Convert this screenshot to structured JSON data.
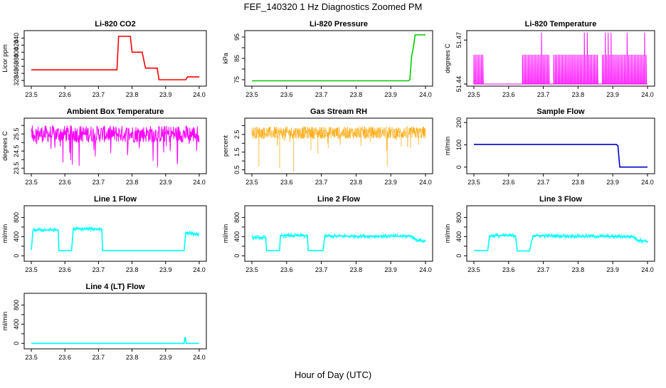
{
  "figure": {
    "title": "FEF_140320  1 Hz Diagnostics Zoomed PM",
    "xlabel": "Hour of Day (UTC)"
  },
  "colors": {
    "red": "#ff0000",
    "green": "#00cc00",
    "magenta": "#ff00ff",
    "orange": "#ffa500",
    "blue": "#0000cc",
    "cyan": "#00ffff"
  },
  "chart_data": [
    {
      "id": "co2",
      "type": "line",
      "title": "Li-820 CO2",
      "ylabel": "Licor ppm",
      "xlim": [
        23.5,
        24.0
      ],
      "ylim": [
        310,
        455
      ],
      "yticks": [
        320,
        340,
        360,
        380,
        400,
        420,
        440
      ],
      "color": "red",
      "series": [
        {
          "x": [
            23.5,
            23.755,
            23.76,
            23.795,
            23.8,
            23.83,
            23.84,
            23.875,
            23.88,
            23.96,
            23.965,
            24.0
          ],
          "values": [
            350,
            350,
            445,
            445,
            400,
            400,
            355,
            355,
            322,
            322,
            330,
            330
          ]
        }
      ]
    },
    {
      "id": "pressure",
      "type": "line",
      "title": "Li-820 Pressure",
      "ylabel": "kPa",
      "xlim": [
        23.5,
        24.0
      ],
      "ylim": [
        73,
        97
      ],
      "yticks": [
        75,
        80,
        85,
        90,
        95
      ],
      "ytick_labels": [
        "75",
        "",
        "85",
        "",
        "95"
      ],
      "color": "green",
      "series": [
        {
          "x": [
            23.5,
            23.95,
            23.955,
            23.96,
            23.965,
            23.97,
            24.0
          ],
          "values": [
            74.5,
            74.5,
            75,
            86,
            90,
            96,
            96
          ]
        }
      ]
    },
    {
      "id": "temp",
      "type": "line",
      "title": "Li-820 Temperature",
      "ylabel": "degrees C",
      "xlim": [
        23.5,
        24.0
      ],
      "ylim": [
        51.44,
        51.475
      ],
      "yticks": [
        51.44,
        51.47
      ],
      "color": "magenta",
      "baseline": 51.44,
      "upper": 51.46,
      "top": 51.475,
      "dense_ranges": [
        [
          23.5,
          23.53
        ],
        [
          23.64,
          23.72
        ],
        [
          23.73,
          23.86
        ],
        [
          23.87,
          24.0
        ]
      ]
    },
    {
      "id": "ambient",
      "type": "line",
      "title": "Ambient Box Temperature",
      "ylabel": "degrees C",
      "xlim": [
        23.5,
        24.0
      ],
      "ylim": [
        23.3,
        26.3
      ],
      "yticks": [
        23.5,
        24.0,
        24.5,
        25.0,
        25.5,
        26.0
      ],
      "ytick_labels": [
        "23.5",
        "",
        "24.5",
        "",
        "25.5",
        ""
      ],
      "color": "magenta",
      "mean": 25.5,
      "noise": 0.5
    },
    {
      "id": "rh",
      "type": "scatter",
      "title": "Gas Stream RH",
      "ylabel": "percent",
      "xlim": [
        23.5,
        24.0
      ],
      "ylim": [
        0.4,
        3.3
      ],
      "yticks": [
        0.5,
        1.0,
        1.5,
        2.0,
        2.5,
        3.0
      ],
      "ytick_labels": [
        "0.5",
        "",
        "1.5",
        "",
        "2.5",
        ""
      ],
      "color": "orange",
      "mean": 2.6,
      "noise": 0.35,
      "dips": [
        [
          23.52,
          0.7
        ],
        [
          23.58,
          0.6
        ],
        [
          23.62,
          0.4
        ],
        [
          23.67,
          1.6
        ],
        [
          23.69,
          1.4
        ],
        [
          23.72,
          1.7
        ],
        [
          23.89,
          0.7
        ],
        [
          23.93,
          1.8
        ],
        [
          23.98,
          1.9
        ]
      ]
    },
    {
      "id": "sample",
      "type": "line",
      "title": "Sample Flow",
      "ylabel": "ml/min",
      "xlim": [
        23.5,
        24.0
      ],
      "ylim": [
        -20,
        210
      ],
      "yticks": [
        0,
        100,
        200
      ],
      "color": "blue",
      "series": [
        {
          "x": [
            23.5,
            23.91,
            23.915,
            23.92,
            24.0
          ],
          "values": [
            102,
            102,
            95,
            0,
            0
          ]
        }
      ]
    },
    {
      "id": "line1",
      "type": "line",
      "title": "Line 1 Flow",
      "ylabel": "ml/min",
      "xlim": [
        23.5,
        24.0
      ],
      "ylim": [
        -70,
        1000
      ],
      "yticks": [
        0,
        200,
        400,
        600,
        800
      ],
      "ytick_labels": [
        "0",
        "",
        "400",
        "",
        "800"
      ],
      "color": "cyan",
      "series": [
        {
          "x": [
            23.5,
            23.505,
            23.58,
            23.582,
            23.62,
            23.625,
            23.71,
            23.712,
            23.955,
            23.96,
            24.0
          ],
          "values": [
            120,
            540,
            540,
            110,
            110,
            560,
            560,
            110,
            110,
            490,
            440
          ]
        }
      ]
    },
    {
      "id": "line2",
      "type": "line",
      "title": "Line 2 Flow",
      "ylabel": "ml/min",
      "xlim": [
        23.5,
        24.0
      ],
      "ylim": [
        -70,
        1000
      ],
      "yticks": [
        0,
        200,
        400,
        600,
        800
      ],
      "ytick_labels": [
        "0",
        "",
        "400",
        "",
        "800"
      ],
      "color": "cyan",
      "series": [
        {
          "x": [
            23.5,
            23.54,
            23.542,
            23.58,
            23.582,
            23.66,
            23.662,
            23.705,
            23.71,
            23.96,
            23.97,
            24.0
          ],
          "values": [
            380,
            380,
            110,
            110,
            420,
            420,
            110,
            110,
            410,
            410,
            340,
            300
          ]
        }
      ]
    },
    {
      "id": "line3",
      "type": "line",
      "title": "Line 3 Flow",
      "ylabel": "ml/min",
      "xlim": [
        23.5,
        24.0
      ],
      "ylim": [
        -70,
        1000
      ],
      "yticks": [
        0,
        200,
        400,
        600,
        800
      ],
      "ytick_labels": [
        "0",
        "",
        "400",
        "",
        "800"
      ],
      "color": "cyan",
      "series": [
        {
          "x": [
            23.5,
            23.54,
            23.545,
            23.62,
            23.625,
            23.66,
            23.67,
            23.96,
            23.97,
            24.0
          ],
          "values": [
            110,
            110,
            420,
            420,
            100,
            100,
            420,
            400,
            330,
            300
          ]
        }
      ]
    },
    {
      "id": "line4",
      "type": "line",
      "title": "Line 4 (LT) Flow",
      "ylabel": "ml/min",
      "xlim": [
        23.5,
        24.0
      ],
      "ylim": [
        -70,
        1000
      ],
      "yticks": [
        0,
        200,
        400,
        600,
        800
      ],
      "ytick_labels": [
        "0",
        "",
        "400",
        "",
        "800"
      ],
      "color": "cyan",
      "series": [
        {
          "x": [
            23.5,
            23.955,
            23.957,
            23.959,
            23.961,
            24.0
          ],
          "values": [
            0,
            0,
            120,
            120,
            0,
            0
          ]
        }
      ]
    }
  ],
  "xaxis": {
    "ticks": [
      23.5,
      23.6,
      23.7,
      23.8,
      23.9,
      24.0
    ],
    "tick_labels": [
      "23.5",
      "23.6",
      "23.7",
      "23.8",
      "23.9",
      "24.0"
    ]
  }
}
